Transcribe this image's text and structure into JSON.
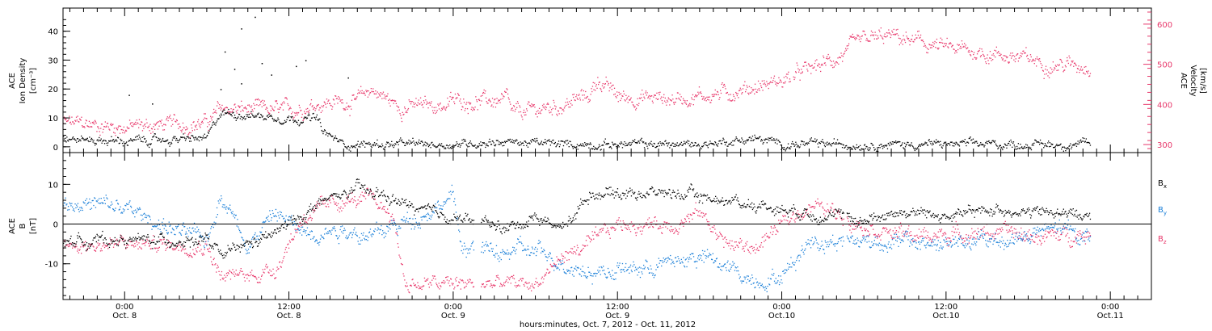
{
  "chart_data": [
    {
      "type": "scatter",
      "panel": "top",
      "left_axis_label": [
        "ACE",
        "Ion Density",
        "[cm⁻³]"
      ],
      "right_axis_label": [
        "ACE",
        "Velocity",
        "[km/s]"
      ],
      "y_left_ticks": [
        "0",
        "10",
        "20",
        "30",
        "40"
      ],
      "y_right_ticks": [
        "300",
        "400",
        "500",
        "600"
      ],
      "ylim_left": [
        -2,
        48
      ],
      "ylim_right": [
        280,
        640
      ],
      "colors": {
        "density": "#000000",
        "velocity": "#e8386b"
      },
      "series": [
        {
          "axis": "left",
          "color_key": "density",
          "anchors": [
            [
              -4.5,
              3
            ],
            [
              0,
              2
            ],
            [
              6,
              3
            ],
            [
              7,
              12
            ],
            [
              12,
              10
            ],
            [
              14,
              10
            ],
            [
              14.5,
              5
            ],
            [
              16,
              1
            ],
            [
              24,
              1
            ],
            [
              27,
              2
            ],
            [
              32,
              1
            ],
            [
              36,
              1
            ],
            [
              42,
              1
            ],
            [
              46,
              3
            ],
            [
              48,
              1
            ],
            [
              54,
              1
            ],
            [
              60,
              1
            ],
            [
              66,
              1
            ],
            [
              70.5,
              1
            ]
          ],
          "spread": 1.5,
          "outliers": [
            [
              9.5,
              45
            ],
            [
              8.5,
              41
            ],
            [
              7.3,
              33
            ],
            [
              10,
              29
            ],
            [
              8,
              27
            ],
            [
              13.2,
              30
            ],
            [
              10.7,
              25
            ],
            [
              2,
              15
            ],
            [
              0.3,
              18
            ],
            [
              12.5,
              28
            ],
            [
              16.3,
              24
            ],
            [
              7,
              20
            ],
            [
              8.5,
              22
            ]
          ]
        },
        {
          "axis": "right",
          "color_key": "velocity",
          "anchors": [
            [
              -4.5,
              355
            ],
            [
              0,
              345
            ],
            [
              6,
              355
            ],
            [
              7,
              390
            ],
            [
              12,
              385
            ],
            [
              14,
              405
            ],
            [
              17,
              410
            ],
            [
              18,
              440
            ],
            [
              20,
              395
            ],
            [
              23.5,
              400
            ],
            [
              24,
              410
            ],
            [
              28,
              410
            ],
            [
              28.2,
              375
            ],
            [
              32,
              400
            ],
            [
              34,
              425
            ],
            [
              34.5,
              465
            ],
            [
              36,
              420
            ],
            [
              40,
              415
            ],
            [
              44,
              430
            ],
            [
              48,
              460
            ],
            [
              52,
              515
            ],
            [
              54,
              560
            ],
            [
              56,
              570
            ],
            [
              60,
              540
            ],
            [
              64,
              525
            ],
            [
              68,
              500
            ],
            [
              70.5,
              500
            ]
          ],
          "spread": 20
        }
      ]
    },
    {
      "type": "scatter",
      "panel": "bottom",
      "left_axis_label": [
        "ACE",
        "B",
        "[nT]"
      ],
      "y_left_ticks": [
        "-10",
        "0",
        "10"
      ],
      "ylim": [
        -19,
        18
      ],
      "legend": [
        "Bx",
        "By",
        "Bz"
      ],
      "legend_labels": [
        {
          "main": "B",
          "sub": "x",
          "color": "#000000"
        },
        {
          "main": "B",
          "sub": "y",
          "color": "#1a7fd8"
        },
        {
          "main": "B",
          "sub": "z",
          "color": "#e8386b"
        }
      ],
      "zero_line": true,
      "series": [
        {
          "name": "Bx",
          "color": "#000000",
          "spread": 1.5,
          "anchors": [
            [
              -4.5,
              -4
            ],
            [
              6,
              -4
            ],
            [
              7,
              -8
            ],
            [
              9,
              -5
            ],
            [
              10,
              -4
            ],
            [
              12,
              0
            ],
            [
              14,
              5
            ],
            [
              17,
              9
            ],
            [
              19,
              7
            ],
            [
              22,
              3
            ],
            [
              24,
              2
            ],
            [
              28,
              -1
            ],
            [
              30,
              2
            ],
            [
              32,
              -1
            ],
            [
              34,
              8
            ],
            [
              40,
              8
            ],
            [
              46,
              5
            ],
            [
              50,
              3
            ],
            [
              54,
              1
            ],
            [
              56,
              3
            ],
            [
              58,
              3
            ],
            [
              60,
              2
            ],
            [
              64,
              4
            ],
            [
              66,
              3
            ],
            [
              68,
              3
            ],
            [
              70.5,
              2
            ]
          ]
        },
        {
          "name": "By",
          "color": "#1a7fd8",
          "spread": 2.2,
          "anchors": [
            [
              -4.5,
              6
            ],
            [
              0,
              4
            ],
            [
              4,
              -2
            ],
            [
              6,
              -4
            ],
            [
              7,
              8
            ],
            [
              9,
              -5
            ],
            [
              11,
              3
            ],
            [
              13,
              -2
            ],
            [
              16,
              -1
            ],
            [
              18,
              -3
            ],
            [
              20,
              0
            ],
            [
              22,
              3
            ],
            [
              24,
              7
            ],
            [
              24.5,
              -5
            ],
            [
              28,
              -8
            ],
            [
              28.3,
              -6
            ],
            [
              30,
              -7
            ],
            [
              34,
              -12
            ],
            [
              38,
              -11
            ],
            [
              42,
              -8
            ],
            [
              46,
              -14
            ],
            [
              48,
              -13
            ],
            [
              50,
              -4
            ],
            [
              54,
              -4
            ],
            [
              60,
              -5
            ],
            [
              64,
              -4
            ],
            [
              66,
              -3
            ],
            [
              68,
              -1
            ],
            [
              70.5,
              -3
            ]
          ]
        },
        {
          "name": "Bz",
          "color": "#e8386b",
          "spread": 2,
          "anchors": [
            [
              -4.5,
              -5
            ],
            [
              6,
              -5
            ],
            [
              7,
              -13
            ],
            [
              9,
              -13
            ],
            [
              11,
              -11
            ],
            [
              13,
              2
            ],
            [
              16,
              6
            ],
            [
              18,
              6
            ],
            [
              19.5,
              3
            ],
            [
              20.5,
              -15
            ],
            [
              24,
              -15
            ],
            [
              28,
              -15
            ],
            [
              30,
              -15
            ],
            [
              32,
              -8
            ],
            [
              34,
              -5
            ],
            [
              36,
              0
            ],
            [
              40,
              0
            ],
            [
              42,
              3
            ],
            [
              44,
              -5
            ],
            [
              46,
              -6
            ],
            [
              48,
              0
            ],
            [
              50,
              5
            ],
            [
              52,
              3
            ],
            [
              54,
              0
            ],
            [
              56,
              -2
            ],
            [
              58,
              -3
            ],
            [
              62,
              -2
            ],
            [
              64,
              -2
            ],
            [
              66,
              -3
            ],
            [
              68,
              -3
            ],
            [
              70.5,
              -2
            ]
          ]
        }
      ]
    }
  ],
  "x_ticks": [
    {
      "hours": 0,
      "time": "0:00",
      "date": "Oct. 8"
    },
    {
      "hours": 12,
      "time": "12:00",
      "date": "Oct. 8"
    },
    {
      "hours": 24,
      "time": "0:00",
      "date": "Oct. 9"
    },
    {
      "hours": 36,
      "time": "12:00",
      "date": "Oct. 9"
    },
    {
      "hours": 48,
      "time": "0:00",
      "date": "Oct.10"
    },
    {
      "hours": 60,
      "time": "12:00",
      "date": "Oct.10"
    },
    {
      "hours": 72,
      "time": "0:00",
      "date": "Oct.11"
    }
  ],
  "x_range_hours": [
    -4.5,
    75
  ],
  "x_label": "hours:minutes, Oct.  7, 2012 - Oct. 11, 2012",
  "colors": {
    "axis": "#000000",
    "velocity_axis": "#e8386b",
    "bx": "#000000",
    "by": "#1a7fd8",
    "bz": "#e8386b"
  }
}
